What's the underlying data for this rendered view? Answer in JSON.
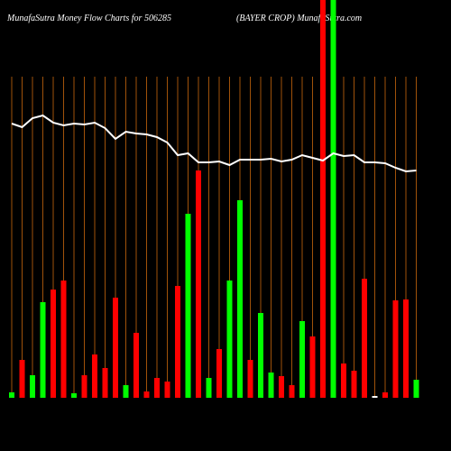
{
  "chart_data": {
    "type": "bar",
    "title": "MunafaSutra  Money Flow  Charts for 506285",
    "subtitle": "(BAYER CROP) MunafaSutra.com",
    "ylim": [
      0,
      441
    ],
    "series": [
      {
        "name": "money flow",
        "colors": [
          "#00ff00",
          "#ff0000",
          "#00ff00",
          "#00ff00",
          "#ff0000",
          "#ff0000",
          "#00ff00",
          "#ff0000",
          "#ff0000",
          "#ff0000",
          "#ff0000",
          "#00ff00",
          "#ff0000",
          "#ff0000",
          "#ff0000",
          "#ff0000",
          "#ff0000",
          "#00ff00",
          "#ff0000",
          "#00ff00",
          "#ff0000",
          "#00ff00",
          "#00ff00",
          "#ff0000",
          "#00ff00",
          "#00ff00",
          "#ff0000",
          "#ff0000",
          "#00ff00",
          "#ff0000",
          "#ff0000",
          "#00ff00",
          "#ff0000",
          "#ff0000",
          "#ff0000",
          "#ffffff",
          "#ff0000",
          "#ff0000",
          "#ff0000",
          "#00ff00"
        ],
        "values": [
          6,
          42,
          25,
          106,
          120,
          130,
          5,
          25,
          48,
          33,
          111,
          14,
          72,
          7,
          22,
          18,
          124,
          204,
          252,
          22,
          54,
          130,
          219,
          42,
          94,
          28,
          24,
          14,
          85,
          68,
          441,
          441,
          38,
          30,
          132,
          2,
          6,
          108,
          109,
          20
        ]
      },
      {
        "name": "price",
        "color": "#ffffff",
        "values": [
          304,
          300,
          310,
          313,
          305,
          302,
          304,
          303,
          305,
          299,
          287,
          295,
          293,
          292,
          289,
          283,
          269,
          271,
          261,
          261,
          262,
          258,
          264,
          264,
          264,
          265,
          262,
          264,
          269,
          266,
          263,
          271,
          268,
          269,
          261,
          261,
          260,
          255,
          251,
          252
        ]
      }
    ],
    "grid_color": "#a0520a"
  }
}
